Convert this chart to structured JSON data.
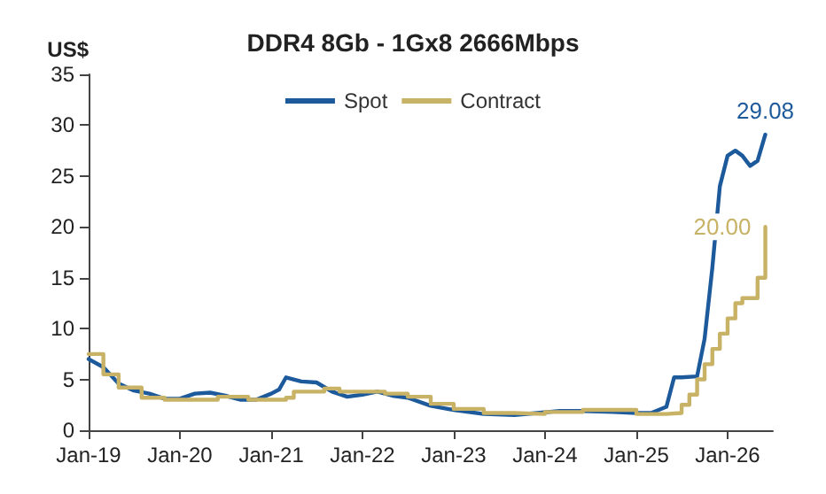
{
  "chart_data": {
    "type": "line",
    "title": "DDR4 8Gb - 1Gx8 2666Mbps",
    "ylabel": "US$",
    "xlim": [
      "2019-01",
      "2026-07"
    ],
    "ylim": [
      0,
      35
    ],
    "yticks": [
      0,
      5,
      10,
      15,
      20,
      25,
      30,
      35
    ],
    "xticks": [
      {
        "value": "2019-01",
        "label": "Jan-19"
      },
      {
        "value": "2020-01",
        "label": "Jan-20"
      },
      {
        "value": "2021-01",
        "label": "Jan-21"
      },
      {
        "value": "2022-01",
        "label": "Jan-22"
      },
      {
        "value": "2023-01",
        "label": "Jan-23"
      },
      {
        "value": "2024-01",
        "label": "Jan-24"
      },
      {
        "value": "2025-01",
        "label": "Jan-25"
      },
      {
        "value": "2026-01",
        "label": "Jan-26"
      }
    ],
    "grid": false,
    "legend": "top",
    "marker": "none",
    "line_style": "solid",
    "series": [
      {
        "name": "Spot",
        "color": "#1d5a9c",
        "x": [
          "2019-01",
          "2019-03",
          "2019-05",
          "2019-07",
          "2019-09",
          "2019-11",
          "2020-01",
          "2020-03",
          "2020-05",
          "2020-07",
          "2020-09",
          "2020-11",
          "2021-01",
          "2021-02",
          "2021-03",
          "2021-05",
          "2021-07",
          "2021-09",
          "2021-11",
          "2022-01",
          "2022-03",
          "2022-05",
          "2022-07",
          "2022-10",
          "2023-01",
          "2023-05",
          "2023-09",
          "2023-12",
          "2024-03",
          "2024-06",
          "2024-10",
          "2025-01",
          "2025-03",
          "2025-05",
          "2025-06",
          "2025-07",
          "2025-09",
          "2025-10",
          "2025-11",
          "2025-12",
          "2026-01",
          "2026-02",
          "2026-03",
          "2026-04",
          "2026-05",
          "2026-06"
        ],
        "values": [
          7.0,
          6.2,
          4.6,
          3.9,
          3.6,
          3.1,
          3.1,
          3.6,
          3.7,
          3.4,
          3.0,
          3.0,
          3.6,
          4.0,
          5.2,
          4.8,
          4.7,
          3.8,
          3.3,
          3.5,
          3.8,
          3.4,
          3.2,
          2.4,
          2.0,
          1.6,
          1.5,
          1.7,
          1.9,
          1.9,
          1.8,
          1.7,
          1.7,
          2.3,
          5.2,
          5.2,
          5.3,
          9,
          16,
          24,
          27,
          27.5,
          27,
          26,
          26.5,
          29.08
        ],
        "value_labels": [
          null,
          null,
          null,
          null,
          null,
          null,
          null,
          null,
          null,
          null,
          null,
          null,
          null,
          null,
          null,
          null,
          null,
          null,
          null,
          null,
          null,
          null,
          null,
          null,
          null,
          null,
          null,
          null,
          null,
          null,
          null,
          null,
          null,
          null,
          null,
          null,
          null,
          null,
          null,
          null,
          null,
          null,
          null,
          null,
          null,
          "29.08"
        ]
      },
      {
        "name": "Contract",
        "type": "step",
        "color": "#c8b266",
        "x": [
          "2019-01",
          "2019-03",
          "2019-05",
          "2019-08",
          "2019-11",
          "2020-06",
          "2020-10",
          "2021-03",
          "2021-04",
          "2021-08",
          "2021-10",
          "2022-04",
          "2022-07",
          "2022-10",
          "2023-01",
          "2023-05",
          "2023-09",
          "2024-01",
          "2024-06",
          "2024-10",
          "2025-01",
          "2025-05",
          "2025-07",
          "2025-08",
          "2025-09",
          "2025-10",
          "2025-11",
          "2025-12",
          "2026-01",
          "2026-02",
          "2026-03",
          "2026-05",
          "2026-06"
        ],
        "values": [
          7.5,
          5.5,
          4.2,
          3.2,
          3.0,
          3.3,
          3.0,
          3.2,
          3.8,
          4.1,
          3.8,
          3.6,
          3.3,
          2.6,
          2.1,
          1.7,
          1.6,
          1.8,
          2.0,
          2.0,
          1.6,
          1.7,
          2.5,
          3.5,
          5.0,
          6.5,
          8.0,
          9.5,
          11,
          12.5,
          13.0,
          15.0,
          20.0
        ],
        "value_labels": [
          null,
          null,
          null,
          null,
          null,
          null,
          null,
          null,
          null,
          null,
          null,
          null,
          null,
          null,
          null,
          null,
          null,
          null,
          null,
          null,
          null,
          null,
          null,
          null,
          null,
          null,
          null,
          null,
          null,
          null,
          null,
          null,
          "20.00"
        ]
      }
    ]
  }
}
